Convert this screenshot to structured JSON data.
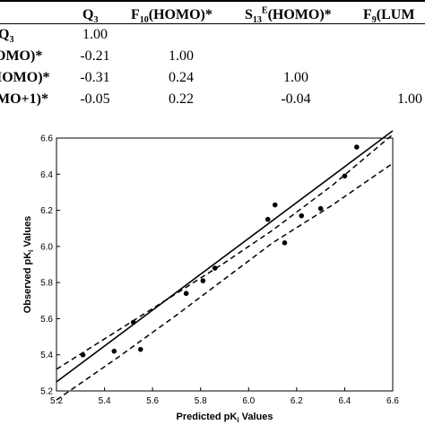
{
  "table": {
    "headers": [
      {
        "main": "Q",
        "sub": "3",
        "sup": "",
        "tail": ""
      },
      {
        "main": "F",
        "sub": "10",
        "sup": "",
        "tail": "(HOMO)*"
      },
      {
        "main": "S",
        "sub": "13",
        "sup": "E",
        "tail": "(HOMO)*"
      },
      {
        "main": "F",
        "sub": "9",
        "sup": "",
        "tail": "(LUM"
      }
    ],
    "row_labels": [
      {
        "main": "Q",
        "sub": "3",
        "tail": ""
      },
      {
        "main": "OMO)*",
        "sub": "",
        "tail": ""
      },
      {
        "main": "IOMO)*",
        "sub": "",
        "tail": ""
      },
      {
        "main": "MO+1)*",
        "sub": "",
        "tail": ""
      }
    ],
    "rows": [
      [
        "1.00",
        "",
        "",
        ""
      ],
      [
        "-0.21",
        "1.00",
        "",
        ""
      ],
      [
        "-0.31",
        "0.24",
        "1.00",
        ""
      ],
      [
        "-0.05",
        "0.22",
        "-0.04",
        "1.00"
      ]
    ]
  },
  "chart_data": {
    "type": "scatter",
    "title": "",
    "xlabel": "Predicted pK",
    "xlabel_sub": "i",
    "xlabel_tail": " Values",
    "ylabel": "Observed pK",
    "ylabel_sub": "i",
    "ylabel_tail": " Values",
    "xlim": [
      5.2,
      6.6
    ],
    "ylim": [
      5.2,
      6.6
    ],
    "xticks": [
      "5.2",
      "5.4",
      "5.6",
      "5.8",
      "6.0",
      "6.2",
      "6.4",
      "6.6"
    ],
    "yticks": [
      "5.2",
      "5.4",
      "5.6",
      "5.8",
      "6.0",
      "6.2",
      "6.4",
      "6.6"
    ],
    "grid": false,
    "series": [
      {
        "points": [
          [
            5.31,
            5.4
          ],
          [
            5.44,
            5.42
          ],
          [
            5.52,
            5.58
          ],
          [
            5.55,
            5.43
          ],
          [
            5.74,
            5.74
          ],
          [
            5.81,
            5.81
          ],
          [
            5.86,
            5.88
          ],
          [
            6.08,
            6.15
          ],
          [
            6.11,
            6.23
          ],
          [
            6.15,
            6.02
          ],
          [
            6.22,
            6.17
          ],
          [
            6.3,
            6.21
          ],
          [
            6.4,
            6.39
          ],
          [
            6.45,
            6.55
          ]
        ]
      }
    ],
    "regression_line": [
      [
        5.2,
        5.25
      ],
      [
        6.6,
        6.64
      ]
    ],
    "confidence_upper": [
      [
        5.2,
        5.32
      ],
      [
        5.45,
        5.53
      ],
      [
        5.7,
        5.74
      ],
      [
        5.9,
        5.91
      ],
      [
        6.1,
        6.09
      ],
      [
        6.35,
        6.34
      ],
      [
        6.6,
        6.62
      ]
    ],
    "confidence_lower": [
      [
        5.2,
        5.15
      ],
      [
        5.45,
        5.38
      ],
      [
        5.7,
        5.62
      ],
      [
        5.9,
        5.82
      ],
      [
        6.1,
        6.02
      ],
      [
        6.35,
        6.23
      ],
      [
        6.6,
        6.46
      ]
    ]
  }
}
